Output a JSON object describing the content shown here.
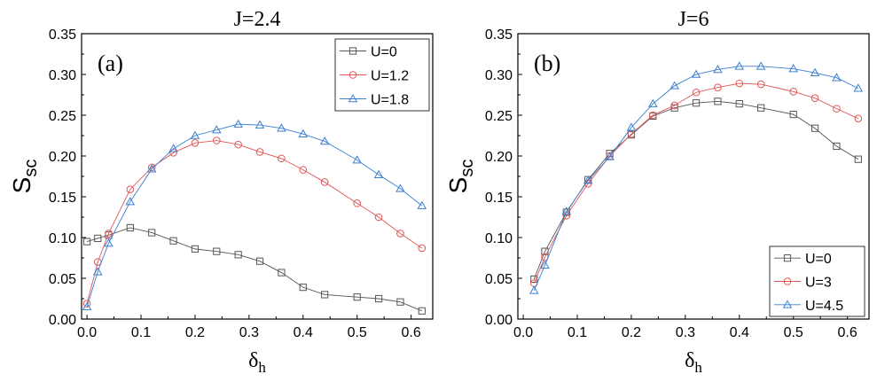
{
  "chart_data": [
    {
      "type": "line",
      "panel_label": "(a)",
      "title": "J=2.4",
      "xlabel": "δ",
      "xlabel_sub": "h",
      "ylabel": "S",
      "ylabel_sub": "sc",
      "xlim": [
        -0.01,
        0.64
      ],
      "ylim": [
        0,
        0.35
      ],
      "xticks": [
        "0.0",
        "0.1",
        "0.2",
        "0.3",
        "0.4",
        "0.5",
        "0.6"
      ],
      "yticks": [
        "0.00",
        "0.05",
        "0.10",
        "0.15",
        "0.20",
        "0.25",
        "0.30",
        "0.35"
      ],
      "legend_position": "top-right",
      "series": [
        {
          "name": "U=0",
          "marker": "square",
          "color": "#555555",
          "x": [
            0.0,
            0.02,
            0.04,
            0.08,
            0.12,
            0.16,
            0.2,
            0.24,
            0.28,
            0.32,
            0.36,
            0.4,
            0.44,
            0.5,
            0.54,
            0.58,
            0.62
          ],
          "y": [
            0.095,
            0.099,
            0.103,
            0.112,
            0.106,
            0.096,
            0.086,
            0.083,
            0.079,
            0.071,
            0.057,
            0.039,
            0.03,
            0.027,
            0.025,
            0.021,
            0.01
          ]
        },
        {
          "name": "U=1.2",
          "marker": "circle",
          "color": "#e05555",
          "x": [
            0.0,
            0.02,
            0.04,
            0.08,
            0.12,
            0.16,
            0.2,
            0.24,
            0.28,
            0.32,
            0.36,
            0.4,
            0.44,
            0.5,
            0.54,
            0.58,
            0.62
          ],
          "y": [
            0.019,
            0.07,
            0.105,
            0.159,
            0.186,
            0.204,
            0.216,
            0.219,
            0.214,
            0.205,
            0.197,
            0.183,
            0.168,
            0.142,
            0.125,
            0.105,
            0.087
          ]
        },
        {
          "name": "U=1.8",
          "marker": "triangle",
          "color": "#3a7fd0",
          "x": [
            0.0,
            0.02,
            0.04,
            0.08,
            0.12,
            0.16,
            0.2,
            0.24,
            0.28,
            0.32,
            0.36,
            0.4,
            0.44,
            0.5,
            0.54,
            0.58,
            0.62
          ],
          "y": [
            0.015,
            0.058,
            0.093,
            0.144,
            0.184,
            0.209,
            0.225,
            0.232,
            0.239,
            0.238,
            0.234,
            0.227,
            0.218,
            0.195,
            0.177,
            0.16,
            0.139
          ]
        }
      ]
    },
    {
      "type": "line",
      "panel_label": "(b)",
      "title": "J=6",
      "xlabel": "δ",
      "xlabel_sub": "h",
      "ylabel": "S",
      "ylabel_sub": "sc",
      "xlim": [
        -0.01,
        0.64
      ],
      "ylim": [
        0,
        0.35
      ],
      "xticks": [
        "0.0",
        "0.1",
        "0.2",
        "0.3",
        "0.4",
        "0.5",
        "0.6"
      ],
      "yticks": [
        "0.00",
        "0.05",
        "0.10",
        "0.15",
        "0.20",
        "0.25",
        "0.30",
        "0.35"
      ],
      "legend_position": "bottom-right",
      "series": [
        {
          "name": "U=0",
          "marker": "square",
          "color": "#555555",
          "x": [
            0.02,
            0.04,
            0.08,
            0.12,
            0.16,
            0.2,
            0.24,
            0.28,
            0.32,
            0.36,
            0.4,
            0.44,
            0.5,
            0.54,
            0.58,
            0.62
          ],
          "y": [
            0.049,
            0.083,
            0.131,
            0.171,
            0.203,
            0.226,
            0.249,
            0.259,
            0.265,
            0.267,
            0.264,
            0.259,
            0.251,
            0.234,
            0.212,
            0.196
          ]
        },
        {
          "name": "U=3",
          "marker": "circle",
          "color": "#e05555",
          "x": [
            0.02,
            0.04,
            0.08,
            0.12,
            0.16,
            0.2,
            0.24,
            0.28,
            0.32,
            0.36,
            0.4,
            0.44,
            0.5,
            0.54,
            0.58,
            0.62
          ],
          "y": [
            0.044,
            0.076,
            0.127,
            0.166,
            0.2,
            0.227,
            0.25,
            0.262,
            0.278,
            0.284,
            0.289,
            0.288,
            0.279,
            0.271,
            0.258,
            0.246
          ]
        },
        {
          "name": "U=4.5",
          "marker": "triangle",
          "color": "#3a7fd0",
          "x": [
            0.02,
            0.04,
            0.08,
            0.12,
            0.16,
            0.2,
            0.24,
            0.28,
            0.32,
            0.36,
            0.4,
            0.44,
            0.5,
            0.54,
            0.58,
            0.62
          ],
          "y": [
            0.035,
            0.066,
            0.132,
            0.17,
            0.199,
            0.235,
            0.264,
            0.286,
            0.3,
            0.306,
            0.31,
            0.31,
            0.307,
            0.302,
            0.296,
            0.283
          ]
        }
      ]
    }
  ]
}
